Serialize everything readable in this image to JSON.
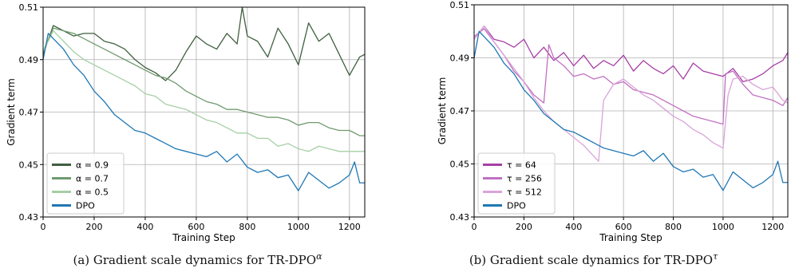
{
  "chart_data": [
    {
      "type": "line",
      "caption": "(a) Gradient scale dynamics for TR-DPO",
      "caption_superscript": "α",
      "xlabel": "Training Step",
      "ylabel": "Gradient term",
      "xlim": [
        0,
        1260
      ],
      "ylim": [
        0.43,
        0.51
      ],
      "xticks": [
        0,
        200,
        400,
        600,
        800,
        1000,
        1200
      ],
      "yticks": [
        0.43,
        0.45,
        0.47,
        0.49,
        0.51
      ],
      "grid": true,
      "legend_position": "lower-left",
      "series": [
        {
          "name": "α = 0.9",
          "color": "#3f5f3f",
          "x": [
            0,
            40,
            80,
            120,
            160,
            200,
            240,
            280,
            320,
            360,
            400,
            440,
            480,
            520,
            560,
            600,
            640,
            680,
            720,
            760,
            780,
            800,
            840,
            880,
            920,
            960,
            1000,
            1040,
            1080,
            1120,
            1160,
            1200,
            1240,
            1260
          ],
          "y": [
            0.492,
            0.503,
            0.501,
            0.499,
            0.5,
            0.5,
            0.497,
            0.496,
            0.494,
            0.49,
            0.487,
            0.485,
            0.482,
            0.486,
            0.493,
            0.499,
            0.496,
            0.494,
            0.5,
            0.496,
            0.51,
            0.499,
            0.497,
            0.491,
            0.502,
            0.496,
            0.488,
            0.504,
            0.497,
            0.5,
            0.492,
            0.484,
            0.491,
            0.492
          ]
        },
        {
          "name": "α = 0.7",
          "color": "#6f9a6f",
          "x": [
            0,
            40,
            80,
            120,
            160,
            200,
            240,
            280,
            320,
            360,
            400,
            440,
            480,
            520,
            560,
            600,
            640,
            680,
            720,
            760,
            800,
            840,
            880,
            920,
            960,
            1000,
            1040,
            1080,
            1120,
            1160,
            1200,
            1240,
            1260
          ],
          "y": [
            0.493,
            0.502,
            0.501,
            0.5,
            0.498,
            0.496,
            0.494,
            0.492,
            0.49,
            0.488,
            0.486,
            0.484,
            0.483,
            0.481,
            0.478,
            0.476,
            0.474,
            0.473,
            0.471,
            0.471,
            0.47,
            0.469,
            0.468,
            0.468,
            0.467,
            0.465,
            0.466,
            0.466,
            0.464,
            0.463,
            0.463,
            0.461,
            0.461
          ]
        },
        {
          "name": "α = 0.5",
          "color": "#a5cfa5",
          "x": [
            0,
            40,
            80,
            120,
            160,
            200,
            240,
            280,
            320,
            360,
            400,
            440,
            480,
            520,
            560,
            600,
            640,
            680,
            720,
            760,
            800,
            840,
            880,
            920,
            960,
            1000,
            1040,
            1080,
            1120,
            1160,
            1200,
            1240,
            1260
          ],
          "y": [
            0.493,
            0.501,
            0.497,
            0.493,
            0.49,
            0.488,
            0.486,
            0.484,
            0.482,
            0.48,
            0.477,
            0.476,
            0.473,
            0.472,
            0.471,
            0.469,
            0.467,
            0.466,
            0.464,
            0.462,
            0.462,
            0.46,
            0.46,
            0.457,
            0.458,
            0.456,
            0.455,
            0.457,
            0.456,
            0.455,
            0.455,
            0.455,
            0.455
          ]
        },
        {
          "name": "DPO",
          "color": "#1f77b4",
          "x": [
            0,
            20,
            40,
            80,
            120,
            160,
            200,
            240,
            280,
            320,
            360,
            400,
            440,
            480,
            520,
            560,
            600,
            640,
            680,
            720,
            760,
            800,
            840,
            880,
            920,
            960,
            1000,
            1040,
            1080,
            1120,
            1160,
            1200,
            1220,
            1240,
            1260
          ],
          "y": [
            0.49,
            0.5,
            0.498,
            0.494,
            0.488,
            0.484,
            0.478,
            0.474,
            0.469,
            0.466,
            0.463,
            0.462,
            0.46,
            0.458,
            0.456,
            0.455,
            0.454,
            0.453,
            0.455,
            0.451,
            0.454,
            0.449,
            0.447,
            0.448,
            0.445,
            0.446,
            0.44,
            0.447,
            0.444,
            0.441,
            0.443,
            0.446,
            0.451,
            0.443,
            0.443
          ]
        }
      ]
    },
    {
      "type": "line",
      "caption": "(b) Gradient scale dynamics for TR-DPO",
      "caption_superscript": "τ",
      "xlabel": "Training Step",
      "ylabel": "Gradient term",
      "xlim": [
        0,
        1260
      ],
      "ylim": [
        0.43,
        0.51
      ],
      "xticks": [
        0,
        200,
        400,
        600,
        800,
        1000,
        1200
      ],
      "yticks": [
        0.43,
        0.45,
        0.47,
        0.49,
        0.51
      ],
      "grid": true,
      "legend_position": "lower-left",
      "series": [
        {
          "name": "τ = 64",
          "color": "#a63fa6",
          "x": [
            0,
            40,
            80,
            120,
            160,
            200,
            240,
            280,
            320,
            360,
            400,
            440,
            480,
            520,
            560,
            600,
            640,
            680,
            720,
            760,
            800,
            840,
            880,
            920,
            960,
            1000,
            1040,
            1080,
            1120,
            1160,
            1200,
            1240,
            1260
          ],
          "y": [
            0.497,
            0.502,
            0.497,
            0.496,
            0.494,
            0.497,
            0.49,
            0.494,
            0.489,
            0.492,
            0.487,
            0.491,
            0.486,
            0.489,
            0.487,
            0.491,
            0.485,
            0.489,
            0.486,
            0.484,
            0.487,
            0.482,
            0.488,
            0.485,
            0.484,
            0.483,
            0.486,
            0.481,
            0.482,
            0.484,
            0.487,
            0.489,
            0.492
          ]
        },
        {
          "name": "τ = 256",
          "color": "#c170c1",
          "x": [
            0,
            40,
            80,
            120,
            160,
            200,
            240,
            280,
            300,
            320,
            360,
            400,
            440,
            480,
            520,
            560,
            600,
            640,
            680,
            720,
            760,
            800,
            840,
            880,
            920,
            960,
            1000,
            1010,
            1040,
            1080,
            1120,
            1160,
            1200,
            1240,
            1260
          ],
          "y": [
            0.498,
            0.501,
            0.496,
            0.491,
            0.485,
            0.481,
            0.476,
            0.473,
            0.495,
            0.49,
            0.487,
            0.483,
            0.484,
            0.482,
            0.483,
            0.48,
            0.481,
            0.478,
            0.477,
            0.476,
            0.474,
            0.472,
            0.47,
            0.468,
            0.467,
            0.466,
            0.465,
            0.484,
            0.485,
            0.48,
            0.476,
            0.475,
            0.474,
            0.472,
            0.475
          ]
        },
        {
          "name": "τ = 512",
          "color": "#d9a3d9",
          "x": [
            0,
            40,
            80,
            120,
            160,
            200,
            240,
            280,
            320,
            360,
            400,
            440,
            480,
            500,
            520,
            560,
            600,
            640,
            680,
            720,
            760,
            800,
            840,
            880,
            920,
            960,
            1000,
            1020,
            1040,
            1080,
            1120,
            1160,
            1200,
            1240,
            1260
          ],
          "y": [
            0.497,
            0.502,
            0.496,
            0.491,
            0.486,
            0.481,
            0.475,
            0.47,
            0.466,
            0.463,
            0.46,
            0.457,
            0.453,
            0.451,
            0.474,
            0.48,
            0.482,
            0.479,
            0.476,
            0.474,
            0.471,
            0.468,
            0.466,
            0.463,
            0.461,
            0.458,
            0.456,
            0.476,
            0.482,
            0.483,
            0.48,
            0.478,
            0.479,
            0.474,
            0.473
          ]
        },
        {
          "name": "DPO",
          "color": "#1f77b4",
          "x": [
            0,
            20,
            40,
            80,
            120,
            160,
            200,
            240,
            280,
            320,
            360,
            400,
            440,
            480,
            520,
            560,
            600,
            640,
            680,
            720,
            760,
            800,
            840,
            880,
            920,
            960,
            1000,
            1040,
            1080,
            1120,
            1160,
            1200,
            1220,
            1240,
            1260
          ],
          "y": [
            0.49,
            0.5,
            0.498,
            0.494,
            0.488,
            0.484,
            0.478,
            0.474,
            0.469,
            0.466,
            0.463,
            0.462,
            0.46,
            0.458,
            0.456,
            0.455,
            0.454,
            0.453,
            0.455,
            0.451,
            0.454,
            0.449,
            0.447,
            0.448,
            0.445,
            0.446,
            0.44,
            0.447,
            0.444,
            0.441,
            0.443,
            0.446,
            0.451,
            0.443,
            0.443
          ]
        }
      ]
    }
  ]
}
